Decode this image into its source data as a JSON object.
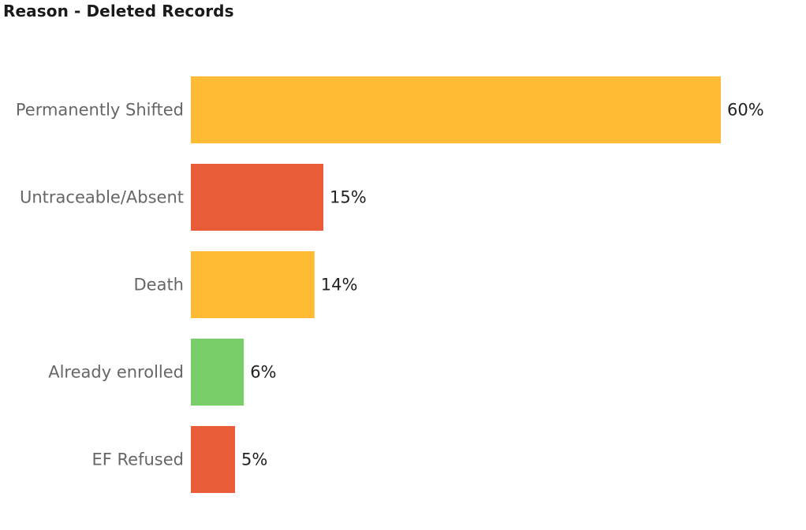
{
  "chart_data": {
    "type": "bar",
    "orientation": "horizontal",
    "title": "Reason - Deleted Records",
    "categories": [
      "Permanently Shifted",
      "Untraceable/Absent",
      "Death",
      "Already enrolled",
      "EF Refused"
    ],
    "values": [
      60,
      15,
      14,
      6,
      5
    ],
    "value_labels": [
      "60%",
      "15%",
      "14%",
      "6%",
      "5%"
    ],
    "colors": [
      "#FEBB33",
      "#E85C37",
      "#FEBB33",
      "#7ACE6A",
      "#E85C37"
    ],
    "xlim": [
      0,
      60
    ],
    "grid": false,
    "legend": "none"
  }
}
